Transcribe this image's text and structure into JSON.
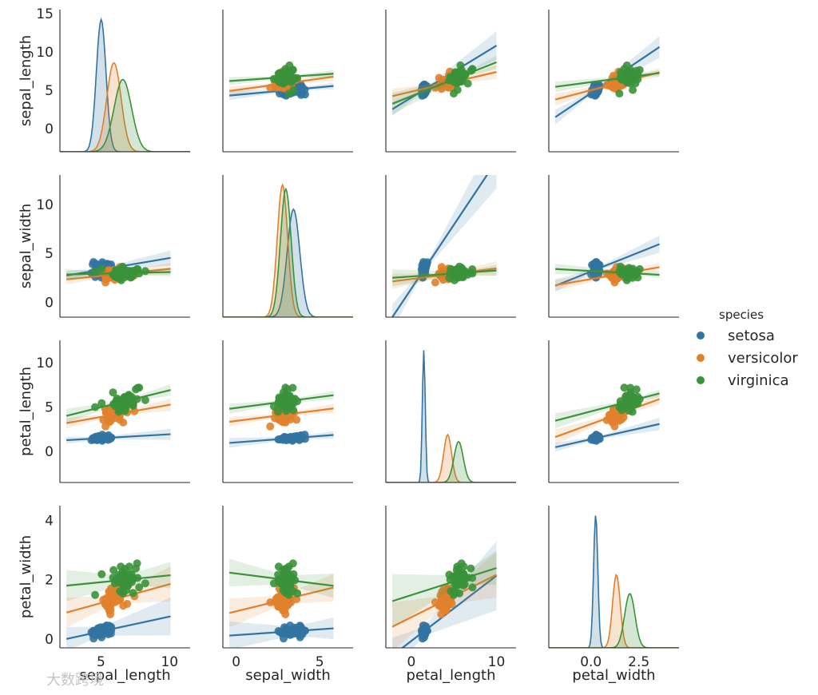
{
  "watermark": "大数跨境",
  "chart_data": {
    "type": "scatter",
    "kind": "pairplot",
    "variables": [
      "sepal_length",
      "sepal_width",
      "petal_length",
      "petal_width"
    ],
    "diag_kind": "kde",
    "regression_lines": true,
    "grid": false,
    "legend": {
      "title": "species",
      "position": "right",
      "entries": [
        {
          "name": "setosa",
          "color": "#3274a1"
        },
        {
          "name": "versicolor",
          "color": "#e1812c"
        },
        {
          "name": "virginica",
          "color": "#3a923a"
        }
      ]
    },
    "axis_ranges": {
      "sepal_length": [
        2.0,
        11.5
      ],
      "sepal_width": [
        -0.8,
        7.0
      ],
      "petal_length": [
        -3.0,
        12.3
      ],
      "petal_width": [
        -0.3,
        4.4
      ]
    },
    "row_ranges": {
      "sepal_length": [
        -3.0,
        15.5
      ],
      "sepal_width": [
        -1.5,
        13.0
      ],
      "petal_length": [
        -3.5,
        12.5
      ],
      "petal_width": [
        -0.3,
        4.5
      ]
    },
    "col_ranges": {
      "sepal_length": [
        2.0,
        11.5
      ],
      "sepal_width": [
        -0.8,
        7.0
      ],
      "petal_length": [
        -3.0,
        12.3
      ],
      "petal_width": [
        -2.2,
        4.6
      ]
    },
    "ticks": {
      "sepal_length": {
        "row": [
          0,
          5,
          10,
          15
        ],
        "col": [
          5,
          10
        ]
      },
      "sepal_width": {
        "row": [
          0,
          5,
          10
        ],
        "col": [
          0,
          5
        ]
      },
      "petal_length": {
        "row": [
          0,
          5,
          10
        ],
        "col": [
          0,
          10
        ]
      },
      "petal_width": {
        "row": [
          0,
          2,
          4
        ],
        "col": [
          0.0,
          2.5
        ]
      }
    },
    "species_stats": {
      "setosa": {
        "mean": [
          5.01,
          3.43,
          1.46,
          0.25
        ],
        "sd": [
          0.35,
          0.38,
          0.17,
          0.11
        ]
      },
      "versicolor": {
        "mean": [
          5.94,
          2.77,
          4.26,
          1.33
        ],
        "sd": [
          0.52,
          0.31,
          0.47,
          0.2
        ]
      },
      "virginica": {
        "mean": [
          6.59,
          2.97,
          5.55,
          2.03
        ],
        "sd": [
          0.64,
          0.32,
          0.55,
          0.27
        ]
      }
    }
  }
}
